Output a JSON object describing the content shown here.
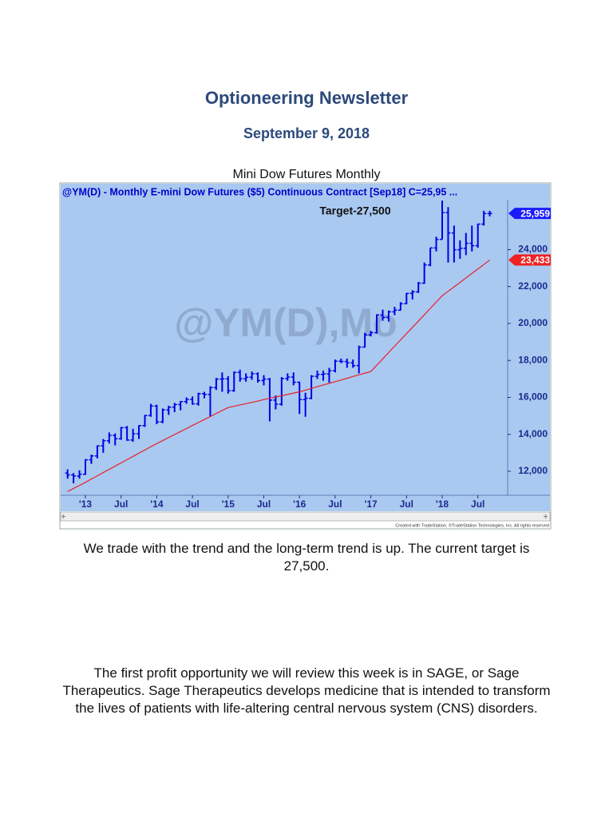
{
  "header": {
    "title": "Optioneering Newsletter",
    "date": "September 9, 2018"
  },
  "figure_caption": "Mini Dow Futures Monthly",
  "chart_data": {
    "type": "ohlc",
    "title": "@YM(D) - Monthly  E-mini Dow Futures ($5) Continuous Contract [Sep18]  C=25,95 ...",
    "annotation": "Target-27,500",
    "watermark": "@YM(D),Mo",
    "credit": "Created with TradeStation. ©TradeStation Technologies, Inc. All rights reserved",
    "categories": [
      "2012-10",
      "2012-11",
      "2012-12",
      "2013-01",
      "2013-02",
      "2013-03",
      "2013-04",
      "2013-05",
      "2013-06",
      "2013-07",
      "2013-08",
      "2013-09",
      "2013-10",
      "2013-11",
      "2013-12",
      "2014-01",
      "2014-02",
      "2014-03",
      "2014-04",
      "2014-05",
      "2014-06",
      "2014-07",
      "2014-08",
      "2014-09",
      "2014-10",
      "2014-11",
      "2014-12",
      "2015-01",
      "2015-02",
      "2015-03",
      "2015-04",
      "2015-05",
      "2015-06",
      "2015-07",
      "2015-08",
      "2015-09",
      "2015-10",
      "2015-11",
      "2015-12",
      "2016-01",
      "2016-02",
      "2016-03",
      "2016-04",
      "2016-05",
      "2016-06",
      "2016-07",
      "2016-08",
      "2016-09",
      "2016-10",
      "2016-11",
      "2016-12",
      "2017-01",
      "2017-02",
      "2017-03",
      "2017-04",
      "2017-05",
      "2017-06",
      "2017-07",
      "2017-08",
      "2017-09",
      "2017-10",
      "2017-11",
      "2017-12",
      "2018-01",
      "2018-02",
      "2018-03",
      "2018-04",
      "2018-05",
      "2018-06",
      "2018-07",
      "2018-08",
      "2018-09"
    ],
    "ohlc": {
      "color": "#0000e6",
      "open": [
        11900,
        11800,
        11740,
        11840,
        12620,
        12830,
        13370,
        13650,
        13940,
        13760,
        14360,
        13690,
        14030,
        14470,
        15020,
        15530,
        14670,
        15320,
        15470,
        15610,
        15770,
        15890,
        15650,
        16200,
        16160,
        16530,
        16990,
        17000,
        16360,
        17350,
        17010,
        17090,
        17280,
        16910,
        16990,
        15850,
        15630,
        17020,
        17100,
        16820,
        15880,
        15950,
        17140,
        17240,
        17270,
        17440,
        17960,
        17940,
        17870,
        17720,
        18720,
        19380,
        19500,
        20460,
        20330,
        20630,
        20720,
        21070,
        21630,
        21710,
        22180,
        23170,
        24090,
        24550,
        26000,
        24900,
        23990,
        24070,
        24340,
        24210,
        25380,
        25950
      ],
      "high": [
        12100,
        11900,
        12050,
        12650,
        12900,
        13400,
        13750,
        14100,
        14050,
        14400,
        14450,
        14300,
        14500,
        15050,
        15650,
        15600,
        15400,
        15550,
        15700,
        15800,
        16000,
        16050,
        16250,
        16300,
        16600,
        17050,
        17350,
        17150,
        17400,
        17500,
        17300,
        17400,
        17350,
        17200,
        17050,
        16100,
        17100,
        17300,
        17350,
        16850,
        16250,
        17200,
        17450,
        17450,
        17600,
        18050,
        18100,
        18100,
        18050,
        18800,
        19500,
        19600,
        20500,
        20750,
        20700,
        20900,
        21150,
        21650,
        21800,
        22250,
        23300,
        24100,
        24700,
        26650,
        26300,
        25300,
        24500,
        24900,
        25300,
        25400,
        26100,
        26100
      ],
      "low": [
        11600,
        11350,
        11600,
        11800,
        12400,
        12700,
        13000,
        13500,
        13400,
        13700,
        13650,
        13600,
        13750,
        14400,
        14950,
        14550,
        14600,
        15050,
        15200,
        15300,
        15650,
        15600,
        15550,
        15950,
        14950,
        16400,
        16300,
        16200,
        16300,
        16850,
        16850,
        16950,
        16800,
        16650,
        14700,
        15350,
        15550,
        16900,
        16650,
        15100,
        14950,
        15900,
        17000,
        16900,
        16800,
        17350,
        17850,
        17600,
        17600,
        17300,
        18700,
        19300,
        19450,
        20150,
        20100,
        20450,
        20700,
        21050,
        21300,
        21650,
        22150,
        23100,
        23900,
        24550,
        23300,
        23300,
        23500,
        23700,
        23900,
        24100,
        25300,
        25800
      ],
      "close": [
        11800,
        11740,
        11840,
        12620,
        12830,
        13370,
        13650,
        13940,
        13760,
        14360,
        13690,
        14030,
        14470,
        15020,
        15530,
        14670,
        15320,
        15470,
        15610,
        15770,
        15890,
        15650,
        16200,
        16160,
        16530,
        16990,
        17000,
        16360,
        17350,
        17010,
        17090,
        17280,
        16910,
        16990,
        15850,
        15630,
        17020,
        17100,
        16820,
        15880,
        15950,
        17140,
        17240,
        17270,
        17440,
        17960,
        17940,
        17870,
        17720,
        18720,
        19380,
        19500,
        20460,
        20330,
        20630,
        20720,
        21070,
        21630,
        21710,
        22180,
        23170,
        24090,
        24550,
        26000,
        24900,
        23990,
        24070,
        24340,
        24210,
        25380,
        25950,
        25959
      ]
    },
    "moving_average": {
      "color": "#e8202a",
      "values": [
        10900,
        11070,
        11230,
        11400,
        11580,
        11750,
        11930,
        12100,
        12280,
        12450,
        12630,
        12800,
        12980,
        13150,
        13330,
        13500,
        13660,
        13830,
        13990,
        14150,
        14310,
        14480,
        14640,
        14800,
        14960,
        15130,
        15290,
        15450,
        15520,
        15590,
        15660,
        15730,
        15800,
        15880,
        15950,
        16020,
        16090,
        16160,
        16230,
        16300,
        16390,
        16480,
        16580,
        16670,
        16760,
        16850,
        16940,
        17030,
        17130,
        17220,
        17310,
        17400,
        17740,
        18080,
        18430,
        18770,
        19110,
        19450,
        19790,
        20130,
        20470,
        20820,
        21160,
        21500,
        21740,
        21980,
        22220,
        22470,
        22710,
        22950,
        23190,
        23433
      ]
    },
    "price_markers": [
      {
        "value": 25959,
        "label": "25,959",
        "color": "#1a1aff"
      },
      {
        "value": 23433,
        "label": "23,433",
        "color": "#ee2222"
      }
    ],
    "ylim": [
      10700,
      26700
    ],
    "yticks": [
      {
        "value": 12000,
        "label": "12,000"
      },
      {
        "value": 14000,
        "label": "14,000"
      },
      {
        "value": 16000,
        "label": "16,000"
      },
      {
        "value": 18000,
        "label": "18,000"
      },
      {
        "value": 20000,
        "label": "20,000"
      },
      {
        "value": 22000,
        "label": "22,000"
      },
      {
        "value": 24000,
        "label": "24,000"
      }
    ],
    "xticks": [
      {
        "value": "2013-01",
        "label": "'13"
      },
      {
        "value": "2013-07",
        "label": "Jul"
      },
      {
        "value": "2014-01",
        "label": "'14"
      },
      {
        "value": "2014-07",
        "label": "Jul"
      },
      {
        "value": "2015-01",
        "label": "'15"
      },
      {
        "value": "2015-07",
        "label": "Jul"
      },
      {
        "value": "2016-01",
        "label": "'16"
      },
      {
        "value": "2016-07",
        "label": "Jul"
      },
      {
        "value": "2017-01",
        "label": "'17"
      },
      {
        "value": "2017-07",
        "label": "Jul"
      },
      {
        "value": "2018-01",
        "label": "'18"
      },
      {
        "value": "2018-07",
        "label": "Jul"
      }
    ],
    "background": "#a9c9f0"
  },
  "paragraphs": [
    "We trade with the trend and the long-term trend is up. The current target is 27,500.",
    "The first profit opportunity we will review this week is in SAGE, or Sage Therapeutics. Sage Therapeutics develops medicine that is intended to transform the lives of patients with life-altering central nervous system (CNS) disorders."
  ]
}
